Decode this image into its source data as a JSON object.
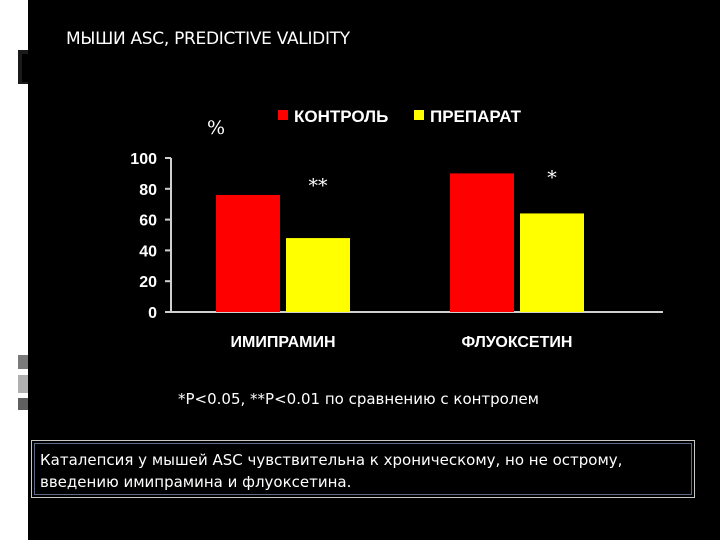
{
  "slide": {
    "title": "МЫШИ ASC, PREDICTIVE VALIDITY",
    "footnote": "*P<0.05, **P<0.01 по сравнению с контролем",
    "note": "Каталепсия у мышей ASC чувствительна к хроническому, но не острому, введению имипрамина и флуоксетина."
  },
  "chart_data": {
    "type": "bar",
    "ylabel": "%",
    "ylim": [
      0,
      100
    ],
    "yticks": [
      0,
      20,
      40,
      60,
      80,
      100
    ],
    "categories": [
      "ИМИПРАМИН",
      "ФЛУОКСЕТИН"
    ],
    "series": [
      {
        "name": "КОНТРОЛЬ",
        "color": "#ff0000",
        "values": [
          76,
          90
        ]
      },
      {
        "name": "ПРЕПАРАТ",
        "color": "#ffff00",
        "values": [
          48,
          64
        ]
      }
    ],
    "significance": [
      "**",
      "*"
    ],
    "legend_position": "top"
  }
}
